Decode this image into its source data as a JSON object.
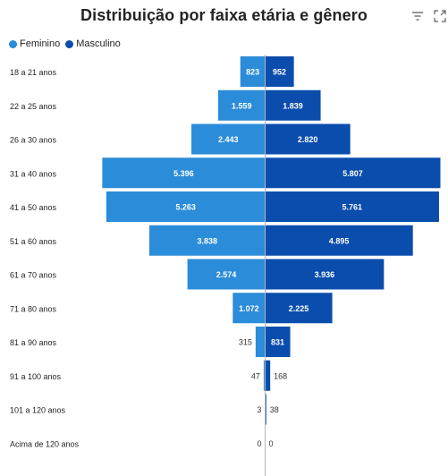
{
  "header": {
    "title": "Distribuição por faixa etária e gênero",
    "filter_icon": "filter-icon",
    "focus_icon": "focus-mode-icon"
  },
  "colors": {
    "feminino": "#2b8cd9",
    "masculino": "#0b4dad",
    "label_inside": "#ffffff",
    "label_outside": "#333333",
    "axis": "#b8b8b8"
  },
  "chart_data": {
    "type": "bar",
    "orientation": "horizontal",
    "layout": "population-pyramid",
    "title": "Distribuição por faixa etária e gênero",
    "legend_position": "top-left",
    "categories": [
      "18 a 21 anos",
      "22 a 25 anos",
      "26 a 30 anos",
      "31 a 40 anos",
      "41 a 50 anos",
      "51 a 60 anos",
      "61 a 70 anos",
      "71 a 80 anos",
      "81 a 90 anos",
      "91 a 100 anos",
      "101 a 120 anos",
      "Acima de 120 anos"
    ],
    "series": [
      {
        "name": "Feminino",
        "side": "left",
        "values": [
          823,
          1559,
          2443,
          5396,
          5263,
          3838,
          2574,
          1072,
          315,
          47,
          3,
          0
        ],
        "labels": [
          "823",
          "1.559",
          "2.443",
          "5.396",
          "5.263",
          "3.838",
          "2.574",
          "1.072",
          "315",
          "47",
          "3",
          "0"
        ]
      },
      {
        "name": "Masculino",
        "side": "right",
        "values": [
          952,
          1839,
          2820,
          5807,
          5761,
          4895,
          3936,
          2225,
          831,
          168,
          38,
          0
        ],
        "labels": [
          "952",
          "1.839",
          "2.820",
          "5.807",
          "5.761",
          "4.895",
          "3.936",
          "2.225",
          "831",
          "168",
          "38",
          "0"
        ]
      }
    ],
    "xlim": [
      -5807,
      5807
    ],
    "grid": false
  }
}
